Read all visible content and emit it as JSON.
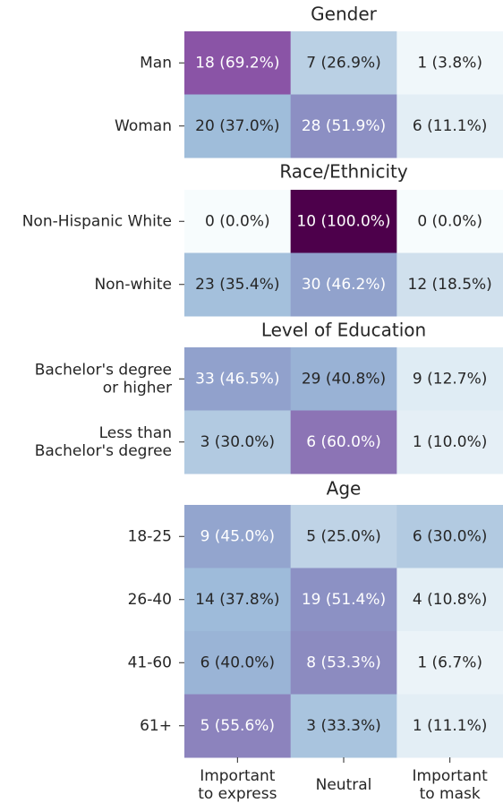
{
  "chart_data": [
    {
      "type": "heatmap",
      "title": "Gender",
      "row_labels": [
        "Man",
        "Woman"
      ],
      "values": [
        [
          69.2,
          26.9,
          3.8
        ],
        [
          37.0,
          51.9,
          11.1
        ]
      ],
      "value_labels": [
        [
          "18 (69.2%)",
          "7 (26.9%)",
          "1 (3.8%)"
        ],
        [
          "20 (37.0%)",
          "28 (51.9%)",
          "6 (11.1%)"
        ]
      ],
      "colormap": [
        "#f7fcfd",
        "#e0ecf4",
        "#bfd3e6",
        "#9ebcda",
        "#8c96c6",
        "#8c6bb1",
        "#88419d",
        "#810f7c",
        "#4d004b"
      ],
      "zlim": [
        0,
        100
      ]
    },
    {
      "type": "heatmap",
      "title": "Race/Ethnicity",
      "row_labels": [
        "Non-Hispanic White",
        "Non-white"
      ],
      "values": [
        [
          0.0,
          100.0,
          0.0
        ],
        [
          35.4,
          46.2,
          18.5
        ]
      ],
      "value_labels": [
        [
          "0 (0.0%)",
          "10 (100.0%)",
          "0 (0.0%)"
        ],
        [
          "23 (35.4%)",
          "30 (46.2%)",
          "12 (18.5%)"
        ]
      ],
      "colormap": [
        "#f7fcfd",
        "#e0ecf4",
        "#bfd3e6",
        "#9ebcda",
        "#8c96c6",
        "#8c6bb1",
        "#88419d",
        "#810f7c",
        "#4d004b"
      ],
      "zlim": [
        0,
        100
      ]
    },
    {
      "type": "heatmap",
      "title": "Level of Education",
      "row_labels": [
        "Bachelor's degree\nor higher",
        "Less than\nBachelor's degree"
      ],
      "values": [
        [
          46.5,
          40.8,
          12.7
        ],
        [
          30.0,
          60.0,
          10.0
        ]
      ],
      "value_labels": [
        [
          "33 (46.5%)",
          "29 (40.8%)",
          "9 (12.7%)"
        ],
        [
          "3 (30.0%)",
          "6 (60.0%)",
          "1 (10.0%)"
        ]
      ],
      "colormap": [
        "#f7fcfd",
        "#e0ecf4",
        "#bfd3e6",
        "#9ebcda",
        "#8c96c6",
        "#8c6bb1",
        "#88419d",
        "#810f7c",
        "#4d004b"
      ],
      "zlim": [
        0,
        100
      ]
    },
    {
      "type": "heatmap",
      "title": "Age",
      "row_labels": [
        "18-25",
        "26-40",
        "41-60",
        "61+"
      ],
      "values": [
        [
          45.0,
          25.0,
          30.0
        ],
        [
          37.8,
          51.4,
          10.8
        ],
        [
          40.0,
          53.3,
          6.7
        ],
        [
          55.6,
          33.3,
          11.1
        ]
      ],
      "value_labels": [
        [
          "9 (45.0%)",
          "5 (25.0%)",
          "6 (30.0%)"
        ],
        [
          "14 (37.8%)",
          "19 (51.4%)",
          "4 (10.8%)"
        ],
        [
          "6 (40.0%)",
          "8 (53.3%)",
          "1 (6.7%)"
        ],
        [
          "5 (55.6%)",
          "3 (33.3%)",
          "1 (11.1%)"
        ]
      ],
      "categories": [
        "Important\nto express",
        "Neutral",
        "Important\nto mask"
      ],
      "colormap": [
        "#f7fcfd",
        "#e0ecf4",
        "#bfd3e6",
        "#9ebcda",
        "#8c96c6",
        "#8c6bb1",
        "#88419d",
        "#810f7c",
        "#4d004b"
      ],
      "zlim": [
        0,
        100
      ]
    }
  ]
}
